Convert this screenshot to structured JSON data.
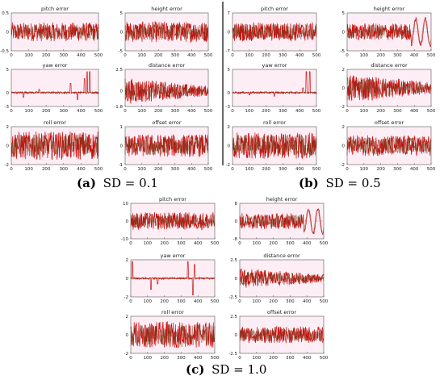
{
  "figure": {
    "captions": {
      "a": {
        "label": "(a)",
        "text": "SD = 0.1"
      },
      "b": {
        "label": "(b)",
        "text": "SD = 0.5"
      },
      "c": {
        "label": "(c)",
        "text": "SD = 1.0"
      }
    }
  },
  "chart_data": [
    {
      "panel": "a",
      "sd": 0.1,
      "subplots": [
        {
          "type": "line",
          "title": "pitch error",
          "xlim": [
            0,
            500
          ],
          "ylim": [
            -0.5,
            0.5
          ],
          "xticks": [
            "0",
            "100",
            "200",
            "300",
            "400",
            "500"
          ],
          "yticks": [
            "0.5",
            "0",
            "-0.5"
          ],
          "series": [
            {
              "color": "#cc1111",
              "amp": 0.5,
              "spikes": [],
              "osc": false
            }
          ]
        },
        {
          "type": "line",
          "title": "height error",
          "xlim": [
            0,
            500
          ],
          "ylim": [
            -5,
            5
          ],
          "xticks": [
            "0",
            "100",
            "200",
            "300",
            "400",
            "500"
          ],
          "yticks": [
            "5",
            "0",
            "-5"
          ],
          "series": [
            {
              "color": "#cc1111",
              "amp": 0.55,
              "spikes": [],
              "osc": false
            }
          ]
        },
        {
          "type": "line",
          "title": "yaw error",
          "xlim": [
            0,
            500
          ],
          "ylim": [
            -3,
            5
          ],
          "xticks": [
            "0",
            "100",
            "200",
            "300",
            "400",
            "500"
          ],
          "yticks": [
            "5",
            "0",
            "-3"
          ],
          "series": [
            {
              "color": "#cc1111",
              "amp": 0.05,
              "spikes": [
                [
                  70,
                  -1
                ],
                [
                  160,
                  0.7
                ],
                [
                  340,
                  2
                ],
                [
                  380,
                  -1.5
                ],
                [
                  420,
                  3
                ],
                [
                  435,
                  4.5
                ],
                [
                  450,
                  4.5
                ]
              ],
              "osc": false
            }
          ]
        },
        {
          "type": "line",
          "title": "distance error",
          "xlim": [
            0,
            500
          ],
          "ylim": [
            -1.8,
            2.5
          ],
          "xticks": [
            "0",
            "100",
            "200",
            "300",
            "400",
            "500"
          ],
          "yticks": [
            "2.5",
            "0",
            "-1.8"
          ],
          "series": [
            {
              "color": "#cc1111",
              "amp": 0.45,
              "spikes": [],
              "osc": false,
              "decay": true
            }
          ]
        },
        {
          "type": "line",
          "title": "roll error",
          "xlim": [
            0,
            500
          ],
          "ylim": [
            -2,
            2
          ],
          "xticks": [
            "0",
            "100",
            "200",
            "300",
            "400",
            "500"
          ],
          "yticks": [
            "2",
            "0",
            "-2"
          ],
          "series": [
            {
              "color": "#cc1111",
              "amp": 0.75,
              "spikes": [],
              "osc": false
            }
          ]
        },
        {
          "type": "line",
          "title": "offset error",
          "xlim": [
            0,
            500
          ],
          "ylim": [
            -1,
            1
          ],
          "xticks": [
            "0",
            "100",
            "200",
            "300",
            "400",
            "500"
          ],
          "yticks": [
            "1",
            "0",
            "-1"
          ],
          "series": [
            {
              "color": "#cc1111",
              "amp": 0.6,
              "spikes": [],
              "osc": false
            }
          ]
        }
      ]
    },
    {
      "panel": "b",
      "sd": 0.5,
      "subplots": [
        {
          "type": "line",
          "title": "pitch error",
          "xlim": [
            0,
            500
          ],
          "ylim": [
            -7,
            7
          ],
          "xticks": [
            "0",
            "100",
            "200",
            "300",
            "400",
            "500"
          ],
          "yticks": [
            "7",
            "0",
            "-7"
          ],
          "series": [
            {
              "color": "#cc1111",
              "amp": 0.5,
              "spikes": [],
              "osc": false
            }
          ]
        },
        {
          "type": "line",
          "title": "height error",
          "xlim": [
            0,
            500
          ],
          "ylim": [
            -5,
            5
          ],
          "xticks": [
            "0",
            "100",
            "200",
            "300",
            "400",
            "500"
          ],
          "yticks": [
            "5",
            "0",
            "-5"
          ],
          "series": [
            {
              "color": "#cc1111",
              "amp": 0.45,
              "spikes": [],
              "osc": true
            }
          ]
        },
        {
          "type": "line",
          "title": "yaw error",
          "xlim": [
            0,
            500
          ],
          "ylim": [
            -3,
            5
          ],
          "xticks": [
            "0",
            "100",
            "200",
            "300",
            "400",
            "500"
          ],
          "yticks": [
            "5",
            "0",
            "-3"
          ],
          "series": [
            {
              "color": "#cc1111",
              "amp": 0.05,
              "spikes": [
                [
                  100,
                  -0.5
                ],
                [
                  250,
                  -0.8
                ],
                [
                  420,
                  1
                ],
                [
                  440,
                  4.5
                ],
                [
                  460,
                  4.5
                ]
              ],
              "osc": false
            }
          ]
        },
        {
          "type": "line",
          "title": "distance error",
          "xlim": [
            0,
            500
          ],
          "ylim": [
            -2,
            2
          ],
          "xticks": [
            "0",
            "100",
            "200",
            "300",
            "400",
            "500"
          ],
          "yticks": [
            "2",
            "0",
            "-2"
          ],
          "series": [
            {
              "color": "#cc1111",
              "amp": 0.5,
              "spikes": [],
              "osc": false,
              "decay": true
            }
          ]
        },
        {
          "type": "line",
          "title": "roll error",
          "xlim": [
            0,
            500
          ],
          "ylim": [
            -2,
            2
          ],
          "xticks": [
            "0",
            "100",
            "200",
            "300",
            "400",
            "500"
          ],
          "yticks": [
            "2",
            "0",
            "-2"
          ],
          "series": [
            {
              "color": "#cc1111",
              "amp": 0.7,
              "spikes": [],
              "osc": false
            }
          ]
        },
        {
          "type": "line",
          "title": "offset error",
          "xlim": [
            0,
            500
          ],
          "ylim": [
            -2,
            2
          ],
          "xticks": [
            "0",
            "100",
            "200",
            "300",
            "400",
            "500"
          ],
          "yticks": [
            "2",
            "0",
            "-2"
          ],
          "series": [
            {
              "color": "#cc1111",
              "amp": 0.55,
              "spikes": [],
              "osc": false
            }
          ]
        }
      ]
    },
    {
      "panel": "c",
      "sd": 1.0,
      "subplots": [
        {
          "type": "line",
          "title": "pitch error",
          "xlim": [
            0,
            500
          ],
          "ylim": [
            -10,
            10
          ],
          "xticks": [
            "0",
            "100",
            "200",
            "300",
            "400",
            "500"
          ],
          "yticks": [
            "10",
            "0",
            "-10"
          ],
          "series": [
            {
              "color": "#cc1111",
              "amp": 0.5,
              "spikes": [],
              "osc": false
            }
          ]
        },
        {
          "type": "line",
          "title": "height error",
          "xlim": [
            0,
            500
          ],
          "ylim": [
            -8,
            8
          ],
          "xticks": [
            "0",
            "100",
            "200",
            "300",
            "400",
            "500"
          ],
          "yticks": [
            "8",
            "0",
            "-8"
          ],
          "series": [
            {
              "color": "#cc1111",
              "amp": 0.45,
              "spikes": [],
              "osc": true
            }
          ]
        },
        {
          "type": "line",
          "title": "yaw error",
          "xlim": [
            0,
            500
          ],
          "ylim": [
            -2,
            2
          ],
          "xticks": [
            "0",
            "100",
            "200",
            "300",
            "400",
            "500"
          ],
          "yticks": [
            "2",
            "0",
            "-2"
          ],
          "series": [
            {
              "color": "#cc1111",
              "amp": 0.05,
              "spikes": [
                [
                  10,
                  1.8
                ],
                [
                  120,
                  -1.2
                ],
                [
                  160,
                  -0.6
                ],
                [
                  340,
                  1.8
                ],
                [
                  370,
                  -1.8
                ],
                [
                  380,
                  1.5
                ]
              ],
              "osc": false
            }
          ]
        },
        {
          "type": "line",
          "title": "distance error",
          "xlim": [
            0,
            500
          ],
          "ylim": [
            -2.5,
            2.5
          ],
          "xticks": [
            "0",
            "100",
            "200",
            "300",
            "400",
            "500"
          ],
          "yticks": [
            "2.5",
            "0",
            "-2.5"
          ],
          "series": [
            {
              "color": "#cc1111",
              "amp": 0.35,
              "spikes": [],
              "osc": false,
              "decay": true
            }
          ]
        },
        {
          "type": "line",
          "title": "roll error",
          "xlim": [
            0,
            500
          ],
          "ylim": [
            -2,
            2
          ],
          "xticks": [
            "0",
            "100",
            "200",
            "300",
            "400",
            "500"
          ],
          "yticks": [
            "2",
            "0",
            "-2"
          ],
          "series": [
            {
              "color": "#cc1111",
              "amp": 0.7,
              "spikes": [],
              "osc": false
            }
          ]
        },
        {
          "type": "line",
          "title": "offset error",
          "xlim": [
            0,
            500
          ],
          "ylim": [
            -2.5,
            2.5
          ],
          "xticks": [
            "0",
            "100",
            "200",
            "300",
            "400",
            "500"
          ],
          "yticks": [
            "2.5",
            "0",
            "-2.5"
          ],
          "series": [
            {
              "color": "#cc1111",
              "amp": 0.45,
              "spikes": [],
              "osc": false
            }
          ]
        }
      ]
    }
  ]
}
